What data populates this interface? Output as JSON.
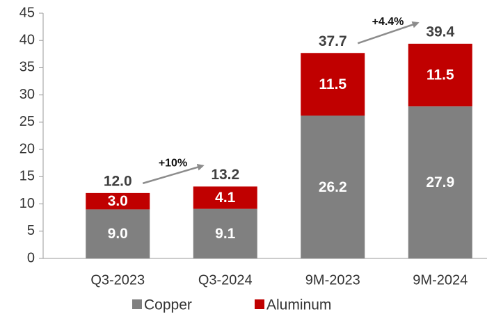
{
  "chart_data": {
    "type": "stacked_bar",
    "categories": [
      "Q3-2023",
      "Q3-2024",
      "9M-2023",
      "9M-2024"
    ],
    "series": [
      {
        "name": "Copper",
        "color": "#808080",
        "values": [
          9.0,
          9.1,
          26.2,
          27.9
        ],
        "value_labels": [
          "9.0",
          "9.1",
          "26.2",
          "27.9"
        ]
      },
      {
        "name": "Aluminum",
        "color": "#c00000",
        "values": [
          3.0,
          4.1,
          11.5,
          11.5
        ],
        "value_labels": [
          "3.0",
          "4.1",
          "11.5",
          "11.5"
        ]
      }
    ],
    "total_labels": [
      "12.0",
      "13.2",
      "37.7",
      "39.4"
    ],
    "annotations": [
      "+10%",
      "+4.4%"
    ],
    "ylim": [
      0,
      45
    ],
    "yticks": [
      0,
      5,
      10,
      15,
      20,
      25,
      30,
      35,
      40,
      45
    ],
    "grid": false,
    "legend": "bottom"
  }
}
